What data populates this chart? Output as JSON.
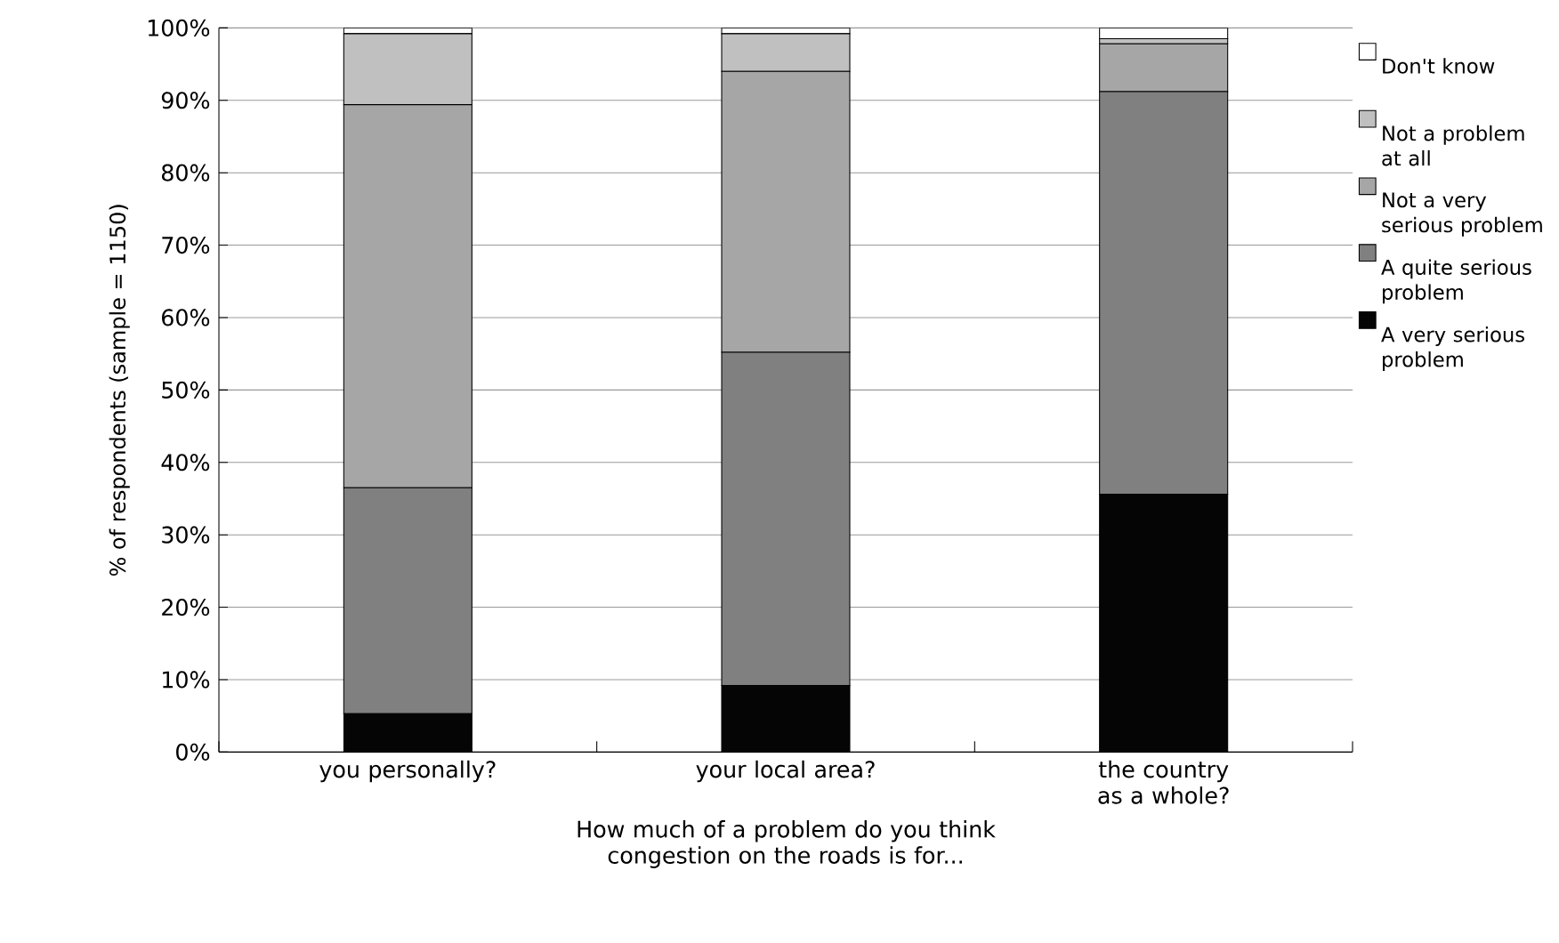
{
  "chart_data": {
    "type": "bar",
    "stacked": true,
    "categories": [
      "you personally?",
      "your local area?",
      "the country as a whole?"
    ],
    "series": [
      {
        "name": "A very serious problem",
        "color": "#050505",
        "values": [
          5.3,
          9.2,
          35.6
        ]
      },
      {
        "name": "A quite serious problem",
        "color": "#808080",
        "values": [
          31.2,
          46.0,
          55.6
        ]
      },
      {
        "name": "Not a very serious problem",
        "color": "#a6a6a6",
        "values": [
          52.9,
          38.8,
          6.6
        ]
      },
      {
        "name": "Not a problem at all",
        "color": "#c0c0c0",
        "values": [
          9.8,
          5.2,
          0.7
        ]
      },
      {
        "name": "Don't know",
        "color": "#ffffff",
        "values": [
          0.8,
          0.8,
          1.5
        ]
      }
    ],
    "xlabel": "How much of a problem do you think congestion on the roads is for...",
    "ylabel": "% of respondents (sample = 1150)",
    "ylim": [
      0,
      100
    ],
    "yticks": [
      {
        "value": 0,
        "label": "0%"
      },
      {
        "value": 10,
        "label": "10%"
      },
      {
        "value": 20,
        "label": "20%"
      },
      {
        "value": 30,
        "label": "30%"
      },
      {
        "value": 40,
        "label": "40%"
      },
      {
        "value": 50,
        "label": "50%"
      },
      {
        "value": 60,
        "label": "60%"
      },
      {
        "value": 70,
        "label": "70%"
      },
      {
        "value": 80,
        "label": "80%"
      },
      {
        "value": 90,
        "label": "90%"
      },
      {
        "value": 100,
        "label": "100%"
      }
    ],
    "grid": "y",
    "legend": "right"
  }
}
